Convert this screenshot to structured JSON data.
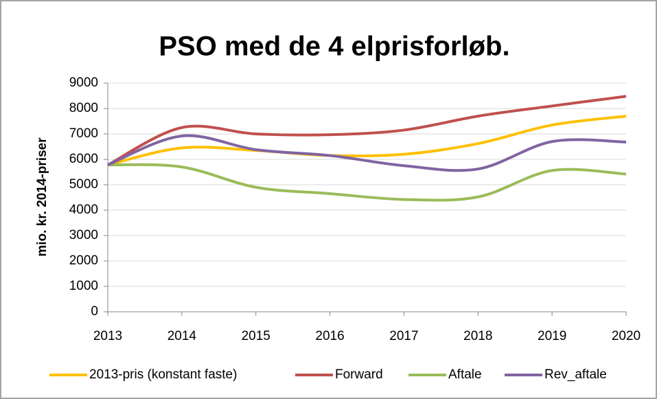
{
  "chart_data": {
    "type": "line",
    "title": "PSO med de 4 elprisforløb.",
    "y_label": "mio. kr. 2014-priser",
    "x": [
      2013,
      2014,
      2015,
      2016,
      2017,
      2018,
      2019,
      2020
    ],
    "series": [
      {
        "name": "2013-pris (konstant faste)",
        "color": "#ffc000",
        "values": [
          5780,
          6450,
          6350,
          6150,
          6200,
          6620,
          7350,
          7700
        ]
      },
      {
        "name": "Forward",
        "color": "#c0504d",
        "values": [
          5780,
          7250,
          7000,
          6970,
          7150,
          7700,
          8100,
          8480
        ]
      },
      {
        "name": "Aftale",
        "color": "#9bbb59",
        "values": [
          5780,
          5700,
          4900,
          4650,
          4420,
          4520,
          5560,
          5420
        ]
      },
      {
        "name": "Rev_aftale",
        "color": "#8064a2",
        "values": [
          5780,
          6920,
          6380,
          6150,
          5750,
          5620,
          6700,
          6680
        ]
      }
    ],
    "xlim": [
      2013,
      2020
    ],
    "xticks": [
      2013,
      2014,
      2015,
      2016,
      2017,
      2018,
      2019,
      2020
    ],
    "ylim": [
      0,
      9000
    ],
    "yticks": [
      0,
      1000,
      2000,
      3000,
      4000,
      5000,
      6000,
      7000,
      8000,
      9000
    ],
    "grid": true,
    "legend": "bottom",
    "smooth": true
  }
}
